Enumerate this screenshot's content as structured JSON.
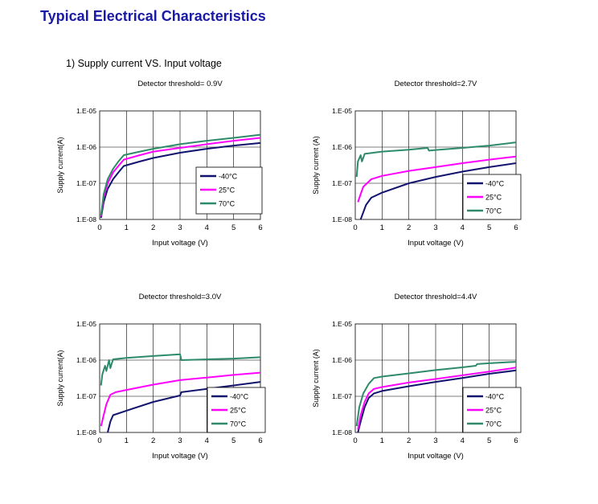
{
  "page_title": "Typical Electrical Characteristics",
  "section_title": "1) Supply current VS. Input voltage",
  "colors": {
    "title": "#1a1aa6",
    "m40": "#12136e",
    "c25": "#ff00ff",
    "c70": "#2e8b6a"
  },
  "chart_data": [
    {
      "type": "line",
      "title": "Detector threshold= 0.9V",
      "xlabel": "Input voltage (V)",
      "ylabel": "Supply current(A)",
      "xlim": [
        0,
        6
      ],
      "ylim": [
        1e-08,
        1e-05
      ],
      "yscale": "log",
      "x_ticks": [
        "0",
        "1",
        "2",
        "3",
        "4",
        "5",
        "6"
      ],
      "y_ticks": [
        "1.E-08",
        "1.E-07",
        "1.E-06",
        "1.E-05"
      ],
      "grid": true,
      "legend_position": "center-right",
      "series": [
        {
          "name": "-40°C",
          "color": "#12136e",
          "points": [
            [
              0.05,
              1.1e-08
            ],
            [
              0.15,
              3e-08
            ],
            [
              0.3,
              7e-08
            ],
            [
              0.5,
              1.3e-07
            ],
            [
              0.7,
              2e-07
            ],
            [
              0.9,
              3e-07
            ],
            [
              1.5,
              4e-07
            ],
            [
              2,
              5e-07
            ],
            [
              3,
              7e-07
            ],
            [
              4,
              9e-07
            ],
            [
              5,
              1.1e-06
            ],
            [
              6,
              1.3e-06
            ]
          ]
        },
        {
          "name": "25°C",
          "color": "#ff00ff",
          "points": [
            [
              0.05,
              1.2e-08
            ],
            [
              0.15,
              4e-08
            ],
            [
              0.3,
              1e-07
            ],
            [
              0.5,
              2e-07
            ],
            [
              0.7,
              3e-07
            ],
            [
              0.9,
              4.5e-07
            ],
            [
              1.5,
              6e-07
            ],
            [
              2,
              7.5e-07
            ],
            [
              3,
              9.5e-07
            ],
            [
              4,
              1.2e-06
            ],
            [
              5,
              1.5e-06
            ],
            [
              6,
              1.8e-06
            ]
          ]
        },
        {
          "name": "70°C",
          "color": "#2e8b6a",
          "points": [
            [
              0.05,
              1.3e-08
            ],
            [
              0.15,
              5e-08
            ],
            [
              0.3,
              1.3e-07
            ],
            [
              0.5,
              2.5e-07
            ],
            [
              0.7,
              4e-07
            ],
            [
              0.9,
              6e-07
            ],
            [
              1.5,
              7.5e-07
            ],
            [
              2,
              9e-07
            ],
            [
              3,
              1.2e-06
            ],
            [
              4,
              1.5e-06
            ],
            [
              5,
              1.8e-06
            ],
            [
              6,
              2.2e-06
            ]
          ]
        }
      ]
    },
    {
      "type": "line",
      "title": "Detector threshold=2.7V",
      "xlabel": "Input voltage (V)",
      "ylabel": "Supply current (A)",
      "xlim": [
        0,
        6
      ],
      "ylim": [
        1e-08,
        1e-05
      ],
      "yscale": "log",
      "x_ticks": [
        "0",
        "1",
        "2",
        "3",
        "4",
        "5",
        "6"
      ],
      "y_ticks": [
        "1.E-08",
        "1.E-07",
        "1.E-06",
        "1.E-05"
      ],
      "grid": true,
      "legend_position": "bottom-right",
      "series": [
        {
          "name": "-40°C",
          "color": "#12136e",
          "points": [
            [
              0.2,
              1e-08
            ],
            [
              0.4,
              2.5e-08
            ],
            [
              0.6,
              4e-08
            ],
            [
              1,
              5.5e-08
            ],
            [
              2,
              1e-07
            ],
            [
              3,
              1.5e-07
            ],
            [
              4,
              2.1e-07
            ],
            [
              5,
              2.8e-07
            ],
            [
              6,
              3.6e-07
            ]
          ]
        },
        {
          "name": "25°C",
          "color": "#ff00ff",
          "points": [
            [
              0.1,
              3e-08
            ],
            [
              0.2,
              5e-08
            ],
            [
              0.3,
              8e-08
            ],
            [
              0.6,
              1.3e-07
            ],
            [
              1,
              1.6e-07
            ],
            [
              2,
              2.2e-07
            ],
            [
              3,
              2.8e-07
            ],
            [
              4,
              3.6e-07
            ],
            [
              5,
              4.5e-07
            ],
            [
              6,
              5.5e-07
            ]
          ]
        },
        {
          "name": "70°C",
          "color": "#2e8b6a",
          "points": [
            [
              0.05,
              1.5e-07
            ],
            [
              0.1,
              4e-07
            ],
            [
              0.2,
              6e-07
            ],
            [
              0.25,
              4e-07
            ],
            [
              0.35,
              6.5e-07
            ],
            [
              1,
              7.5e-07
            ],
            [
              2,
              8.5e-07
            ],
            [
              2.7,
              9.5e-07
            ],
            [
              2.75,
              8e-07
            ],
            [
              3,
              8.3e-07
            ],
            [
              4,
              9.5e-07
            ],
            [
              5,
              1.1e-06
            ],
            [
              6,
              1.35e-06
            ]
          ]
        }
      ]
    },
    {
      "type": "line",
      "title": "Detector threshold=3.0V",
      "xlabel": "Input voltage (V)",
      "ylabel": "Supply current(A)",
      "xlim": [
        0,
        6
      ],
      "ylim": [
        1e-08,
        1e-05
      ],
      "yscale": "log",
      "x_ticks": [
        "0",
        "1",
        "2",
        "3",
        "4",
        "5",
        "6"
      ],
      "y_ticks": [
        "1.E-08",
        "1.E-07",
        "1.E-06",
        "1.E-05"
      ],
      "grid": true,
      "legend_position": "bottom-right",
      "series": [
        {
          "name": "-40°C",
          "color": "#12136e",
          "points": [
            [
              0.3,
              1e-08
            ],
            [
              0.4,
              2e-08
            ],
            [
              0.5,
              3e-08
            ],
            [
              1,
              4e-08
            ],
            [
              2,
              7e-08
            ],
            [
              3,
              1.05e-07
            ],
            [
              3.05,
              1.3e-07
            ],
            [
              4,
              1.6e-07
            ],
            [
              5,
              2e-07
            ],
            [
              6,
              2.5e-07
            ]
          ]
        },
        {
          "name": "25°C",
          "color": "#ff00ff",
          "points": [
            [
              0.05,
              1.5e-08
            ],
            [
              0.15,
              3e-08
            ],
            [
              0.25,
              6e-08
            ],
            [
              0.4,
              1.1e-07
            ],
            [
              0.6,
              1.3e-07
            ],
            [
              1,
              1.5e-07
            ],
            [
              2,
              2.1e-07
            ],
            [
              3,
              2.8e-07
            ],
            [
              4,
              3.3e-07
            ],
            [
              5,
              3.9e-07
            ],
            [
              6,
              4.5e-07
            ]
          ]
        },
        {
          "name": "70°C",
          "color": "#2e8b6a",
          "points": [
            [
              0.05,
              2e-07
            ],
            [
              0.1,
              4e-07
            ],
            [
              0.2,
              7e-07
            ],
            [
              0.25,
              5e-07
            ],
            [
              0.35,
              1e-06
            ],
            [
              0.4,
              6e-07
            ],
            [
              0.5,
              1.05e-06
            ],
            [
              1,
              1.15e-06
            ],
            [
              2,
              1.3e-06
            ],
            [
              3,
              1.45e-06
            ],
            [
              3.05,
              1e-06
            ],
            [
              4,
              1.05e-06
            ],
            [
              5,
              1.1e-06
            ],
            [
              6,
              1.2e-06
            ]
          ]
        }
      ]
    },
    {
      "type": "line",
      "title": "Detector threshold=4.4V",
      "xlabel": "Input voltage (V)",
      "ylabel": "Supply current (A)",
      "xlim": [
        0,
        6
      ],
      "ylim": [
        1e-08,
        1e-05
      ],
      "yscale": "log",
      "x_ticks": [
        "0",
        "1",
        "2",
        "3",
        "4",
        "5",
        "6"
      ],
      "y_ticks": [
        "1.E-08",
        "1.E-07",
        "1.E-06",
        "1.E-05"
      ],
      "grid": true,
      "legend_position": "bottom-right",
      "series": [
        {
          "name": "-40°C",
          "color": "#12136e",
          "points": [
            [
              0.1,
              1e-08
            ],
            [
              0.2,
              2e-08
            ],
            [
              0.35,
              5e-08
            ],
            [
              0.5,
              9e-08
            ],
            [
              0.7,
              1.2e-07
            ],
            [
              1,
              1.4e-07
            ],
            [
              2,
              1.9e-07
            ],
            [
              3,
              2.5e-07
            ],
            [
              4,
              3.2e-07
            ],
            [
              5,
              4.2e-07
            ],
            [
              6,
              5.2e-07
            ]
          ]
        },
        {
          "name": "25°C",
          "color": "#ff00ff",
          "points": [
            [
              0.1,
              1.2e-08
            ],
            [
              0.2,
              3e-08
            ],
            [
              0.35,
              7e-08
            ],
            [
              0.5,
              1.2e-07
            ],
            [
              0.7,
              1.6e-07
            ],
            [
              1,
              1.8e-07
            ],
            [
              2,
              2.4e-07
            ],
            [
              3,
              3e-07
            ],
            [
              4,
              3.8e-07
            ],
            [
              5,
              4.8e-07
            ],
            [
              6,
              6.2e-07
            ]
          ]
        },
        {
          "name": "70°C",
          "color": "#2e8b6a",
          "points": [
            [
              0.05,
              1.5e-08
            ],
            [
              0.15,
              5e-08
            ],
            [
              0.3,
              1.2e-07
            ],
            [
              0.5,
              2.2e-07
            ],
            [
              0.7,
              3.2e-07
            ],
            [
              1,
              3.5e-07
            ],
            [
              2,
              4.3e-07
            ],
            [
              3,
              5.3e-07
            ],
            [
              4,
              6.3e-07
            ],
            [
              4.5,
              7e-07
            ],
            [
              4.55,
              7.8e-07
            ],
            [
              5,
              8.2e-07
            ],
            [
              6,
              9e-07
            ]
          ]
        }
      ]
    }
  ]
}
